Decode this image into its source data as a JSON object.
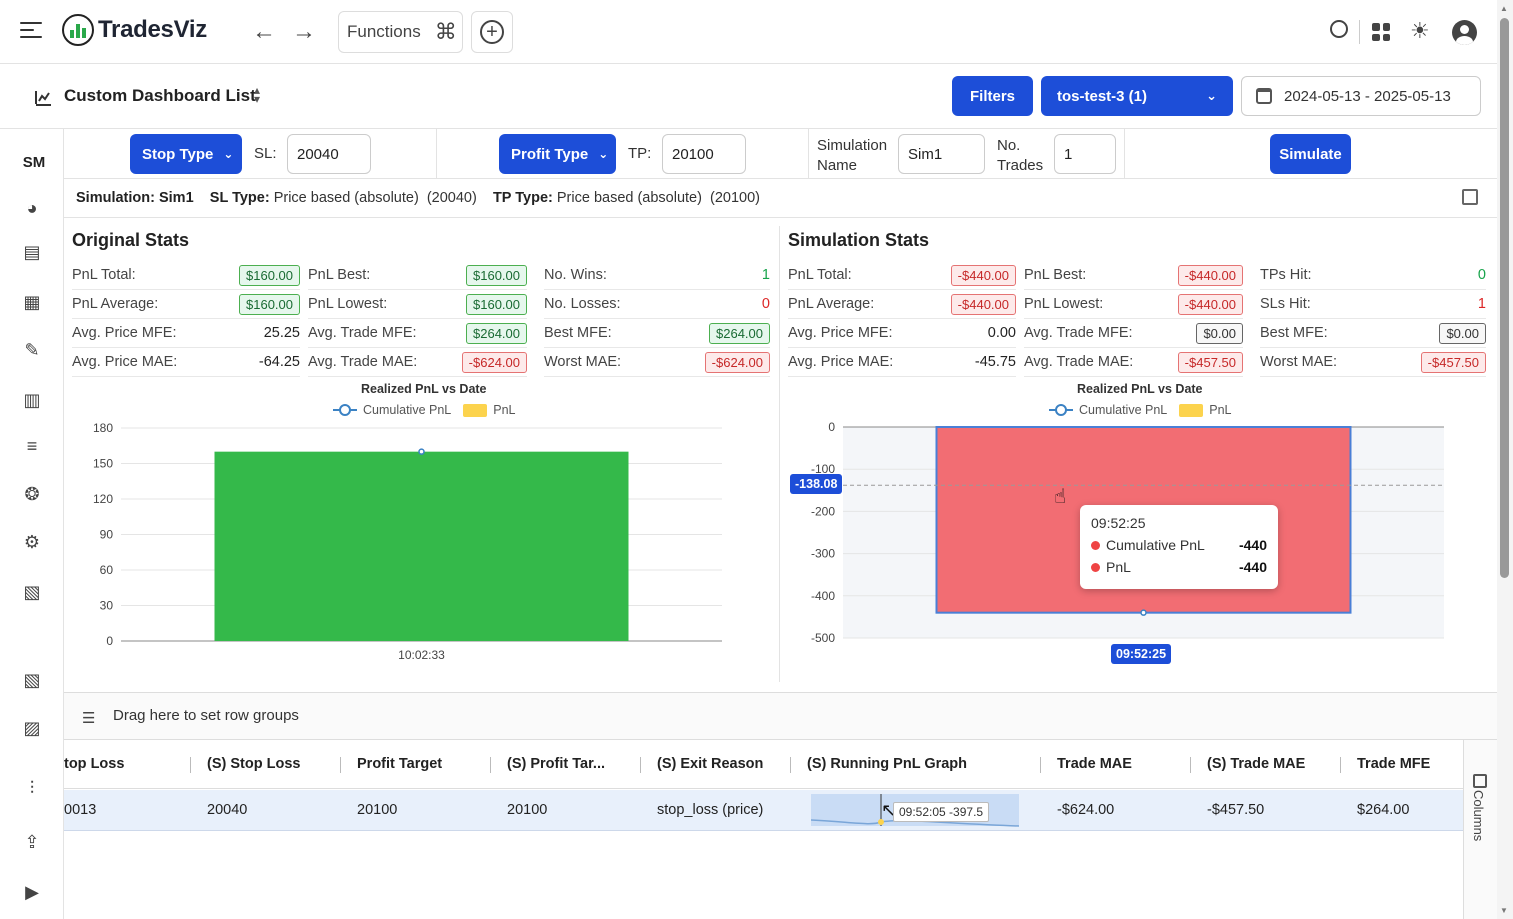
{
  "app": {
    "name": "TradesViz"
  },
  "topbar": {
    "functions_label": "Functions"
  },
  "subheader": {
    "title": "Custom Dashboard List",
    "filters_label": "Filters",
    "account_label": "tos-test-3 (1)",
    "date_range": "2024-05-13 - 2025-05-13"
  },
  "sidebar": {
    "initials": "SM"
  },
  "sim_controls": {
    "stop_type_label": "Stop Type",
    "sl_label": "SL:",
    "sl_value": "20040",
    "profit_type_label": "Profit Type",
    "tp_label": "TP:",
    "tp_value": "20100",
    "sim_name_label": "Simulation Name",
    "sim_name_value": "Sim1",
    "num_trades_label": "No. Trades",
    "num_trades_value": "1",
    "simulate_label": "Simulate"
  },
  "info": {
    "simulation_label": "Simulation:",
    "simulation_value": "Sim1",
    "sl_type_label": "SL Type:",
    "sl_type_value": "Price based (absolute)",
    "sl_type_amount": "(20040)",
    "tp_type_label": "TP Type:",
    "tp_type_value": "Price based (absolute)",
    "tp_type_amount": "(20100)"
  },
  "original_stats": {
    "title": "Original Stats",
    "col1": [
      {
        "label": "PnL Total:",
        "value": "$160.00"
      },
      {
        "label": "PnL Average:",
        "value": "$160.00"
      },
      {
        "label": "Avg. Price MFE:",
        "value": "25.25"
      },
      {
        "label": "Avg. Price MAE:",
        "value": "-64.25"
      }
    ],
    "col2": [
      {
        "label": "PnL Best:",
        "value": "$160.00"
      },
      {
        "label": "PnL Lowest:",
        "value": "$160.00"
      },
      {
        "label": "Avg. Trade MFE:",
        "value": "$264.00"
      },
      {
        "label": "Avg. Trade MAE:",
        "value": "-$624.00"
      }
    ],
    "col3": [
      {
        "label": "No. Wins:",
        "value": "1"
      },
      {
        "label": "No. Losses:",
        "value": "0"
      },
      {
        "label": "Best MFE:",
        "value": "$264.00"
      },
      {
        "label": "Worst MAE:",
        "value": "-$624.00"
      }
    ]
  },
  "simulation_stats": {
    "title": "Simulation Stats",
    "col1": [
      {
        "label": "PnL Total:",
        "value": "-$440.00"
      },
      {
        "label": "PnL Average:",
        "value": "-$440.00"
      },
      {
        "label": "Avg. Price MFE:",
        "value": "0.00"
      },
      {
        "label": "Avg. Price MAE:",
        "value": "-45.75"
      }
    ],
    "col2": [
      {
        "label": "PnL Best:",
        "value": "-$440.00"
      },
      {
        "label": "PnL Lowest:",
        "value": "-$440.00"
      },
      {
        "label": "Avg. Trade MFE:",
        "value": "$0.00"
      },
      {
        "label": "Avg. Trade MAE:",
        "value": "-$457.50"
      }
    ],
    "col3": [
      {
        "label": "TPs Hit:",
        "value": "0"
      },
      {
        "label": "SLs Hit:",
        "value": "1"
      },
      {
        "label": "Best MFE:",
        "value": "$0.00"
      },
      {
        "label": "Worst MAE:",
        "value": "-$457.50"
      }
    ]
  },
  "chart_data": [
    {
      "type": "bar",
      "title": "Realized PnL vs Date",
      "legend": [
        "Cumulative PnL",
        "PnL"
      ],
      "categories": [
        "10:02:33"
      ],
      "series": [
        {
          "name": "PnL",
          "values": [
            160
          ],
          "color": "#34b94a"
        },
        {
          "name": "Cumulative PnL",
          "values": [
            160
          ],
          "color": "#3b82c4"
        }
      ],
      "yticks": [
        0,
        30,
        60,
        90,
        120,
        150,
        180
      ],
      "ylim": [
        0,
        180
      ]
    },
    {
      "type": "bar",
      "title": "Realized PnL vs Date",
      "legend": [
        "Cumulative PnL",
        "PnL"
      ],
      "categories": [
        "09:52:25"
      ],
      "series": [
        {
          "name": "PnL",
          "values": [
            -440
          ],
          "color": "#f26d73"
        },
        {
          "name": "Cumulative PnL",
          "values": [
            -440
          ],
          "color": "#3b82c4"
        }
      ],
      "yticks": [
        0,
        -100,
        -200,
        -300,
        -400,
        -500
      ],
      "ylim": [
        -500,
        0
      ],
      "crosshair": {
        "y_value": "-138.08",
        "x_value": "09:52:25"
      }
    }
  ],
  "tooltip": {
    "time": "09:52:25",
    "rows": [
      {
        "label": "Cumulative PnL",
        "value": "-440"
      },
      {
        "label": "PnL",
        "value": "-440"
      }
    ]
  },
  "grid": {
    "group_bar_label": "Drag here to set row groups",
    "columns_label": "Columns",
    "headers": [
      "top Loss",
      "(S) Stop Loss",
      "Profit Target",
      "(S) Profit Tar...",
      "(S) Exit Reason",
      "(S) Running PnL Graph",
      "Trade MAE",
      "(S) Trade MAE",
      "Trade MFE"
    ],
    "row": [
      "0013",
      "20040",
      "20100",
      "20100",
      "stop_loss (price)",
      "",
      "-$624.00",
      "-$457.50",
      "$264.00"
    ],
    "spark_tooltip": "09:52:05   -397.5"
  }
}
